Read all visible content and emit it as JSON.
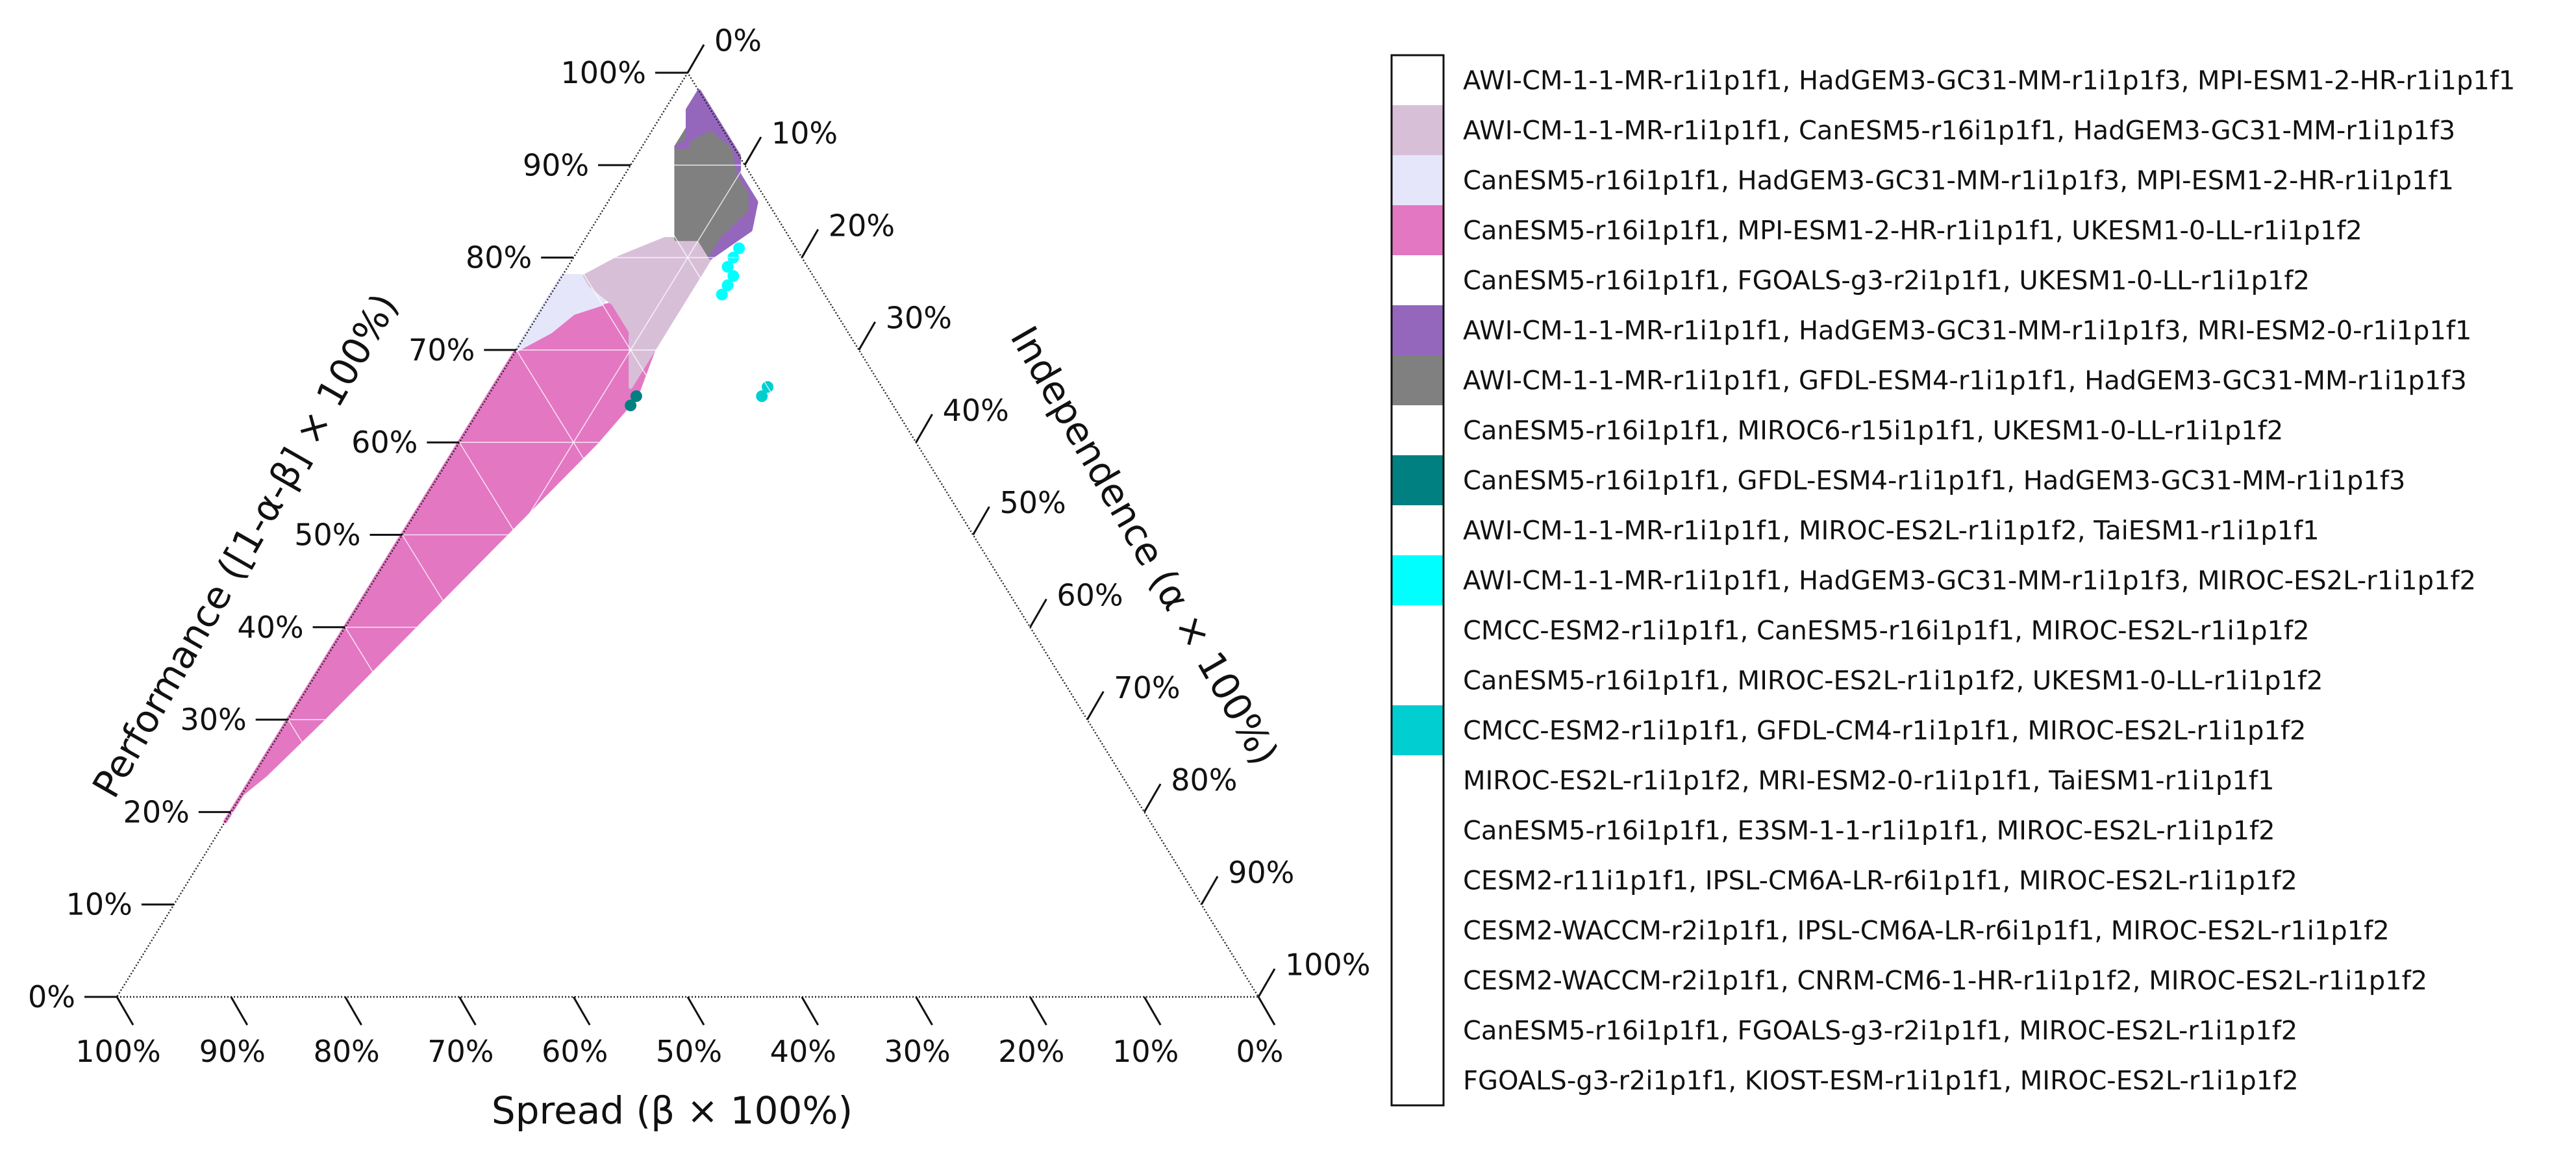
{
  "chart_data": {
    "type": "ternary-hexbin",
    "axes": {
      "bottom": {
        "label": "Spread  (β × 100%)",
        "ticks": [
          "100%",
          "90%",
          "80%",
          "70%",
          "60%",
          "50%",
          "40%",
          "30%",
          "20%",
          "10%",
          "0%"
        ]
      },
      "left": {
        "label": "Performance ([1-α-β] × 100%)",
        "ticks": [
          "0%",
          "10%",
          "20%",
          "30%",
          "40%",
          "50%",
          "60%",
          "70%",
          "80%",
          "90%",
          "100%"
        ]
      },
      "right": {
        "label": "Independence (α × 100%)",
        "ticks": [
          "0%",
          "10%",
          "20%",
          "30%",
          "40%",
          "50%",
          "60%",
          "70%",
          "80%",
          "90%",
          "100%"
        ]
      },
      "range": [
        0,
        100
      ],
      "grid": true
    },
    "legend": {
      "placement": "right",
      "entries": [
        {
          "label": "AWI-CM-1-1-MR-r1i1p1f1, HadGEM3-GC31-MM-r1i1p1f3, MPI-ESM1-2-HR-r1i1p1f1",
          "color": "#ffffff"
        },
        {
          "label": "AWI-CM-1-1-MR-r1i1p1f1, CanESM5-r16i1p1f1, HadGEM3-GC31-MM-r1i1p1f3",
          "color": "#d8bfd8"
        },
        {
          "label": "CanESM5-r16i1p1f1, HadGEM3-GC31-MM-r1i1p1f3, MPI-ESM1-2-HR-r1i1p1f1",
          "color": "#e6e6fa"
        },
        {
          "label": "CanESM5-r16i1p1f1, MPI-ESM1-2-HR-r1i1p1f1, UKESM1-0-LL-r1i1p1f2",
          "color": "#e377c2"
        },
        {
          "label": "CanESM5-r16i1p1f1, FGOALS-g3-r2i1p1f1, UKESM1-0-LL-r1i1p1f2",
          "color": "#ffffff"
        },
        {
          "label": "AWI-CM-1-1-MR-r1i1p1f1, HadGEM3-GC31-MM-r1i1p1f3, MRI-ESM2-0-r1i1p1f1",
          "color": "#9467bd"
        },
        {
          "label": "AWI-CM-1-1-MR-r1i1p1f1, GFDL-ESM4-r1i1p1f1, HadGEM3-GC31-MM-r1i1p1f3",
          "color": "#808080"
        },
        {
          "label": "CanESM5-r16i1p1f1, MIROC6-r15i1p1f1, UKESM1-0-LL-r1i1p1f2",
          "color": "#ffffff"
        },
        {
          "label": "CanESM5-r16i1p1f1, GFDL-ESM4-r1i1p1f1, HadGEM3-GC31-MM-r1i1p1f3",
          "color": "#008080"
        },
        {
          "label": "AWI-CM-1-1-MR-r1i1p1f1, MIROC-ES2L-r1i1p1f2, TaiESM1-r1i1p1f1",
          "color": "#ffffff"
        },
        {
          "label": "AWI-CM-1-1-MR-r1i1p1f1, HadGEM3-GC31-MM-r1i1p1f3, MIROC-ES2L-r1i1p1f2",
          "color": "#00ffff"
        },
        {
          "label": "CMCC-ESM2-r1i1p1f1, CanESM5-r16i1p1f1, MIROC-ES2L-r1i1p1f2",
          "color": "#ffffff"
        },
        {
          "label": "CanESM5-r16i1p1f1, MIROC-ES2L-r1i1p1f2, UKESM1-0-LL-r1i1p1f2",
          "color": "#ffffff"
        },
        {
          "label": "CMCC-ESM2-r1i1p1f1, GFDL-CM4-r1i1p1f1, MIROC-ES2L-r1i1p1f2",
          "color": "#00ced1"
        },
        {
          "label": "MIROC-ES2L-r1i1p1f2, MRI-ESM2-0-r1i1p1f1, TaiESM1-r1i1p1f1",
          "color": "#ffffff"
        },
        {
          "label": "CanESM5-r16i1p1f1, E3SM-1-1-r1i1p1f1, MIROC-ES2L-r1i1p1f2",
          "color": "#ffffff"
        },
        {
          "label": "CESM2-r11i1p1f1, IPSL-CM6A-LR-r6i1p1f1, MIROC-ES2L-r1i1p1f2",
          "color": "#ffffff"
        },
        {
          "label": "CESM2-WACCM-r2i1p1f1, IPSL-CM6A-LR-r6i1p1f1, MIROC-ES2L-r1i1p1f2",
          "color": "#ffffff"
        },
        {
          "label": "CESM2-WACCM-r2i1p1f1, CNRM-CM6-1-HR-r1i1p1f2, MIROC-ES2L-r1i1p1f2",
          "color": "#ffffff"
        },
        {
          "label": "CanESM5-r16i1p1f1, FGOALS-g3-r2i1p1f1, MIROC-ES2L-r1i1p1f2",
          "color": "#ffffff"
        },
        {
          "label": "FGOALS-g3-r2i1p1f1, KIOST-ESM-r1i1p1f1, MIROC-ES2L-r1i1p1f2",
          "color": "#ffffff"
        }
      ]
    },
    "regions": [
      {
        "color": "#e377c2",
        "note_series": 3,
        "points_pab": [
          [
            19,
            0,
            81
          ],
          [
            20,
            0,
            80
          ],
          [
            22,
            0,
            78
          ],
          [
            24,
            1,
            75
          ],
          [
            30,
            3,
            67
          ],
          [
            40,
            6,
            54
          ],
          [
            50,
            9,
            41
          ],
          [
            60,
            12,
            28
          ],
          [
            65,
            13,
            22
          ],
          [
            70,
            12,
            18
          ],
          [
            73,
            10,
            17
          ],
          [
            75,
            6,
            19
          ],
          [
            74,
            3,
            23
          ],
          [
            72,
            2,
            26
          ],
          [
            70,
            0,
            30
          ],
          [
            65,
            0,
            35
          ],
          [
            60,
            0,
            40
          ],
          [
            50,
            0,
            50
          ],
          [
            40,
            0,
            60
          ],
          [
            30,
            0,
            70
          ],
          [
            20,
            0,
            80
          ],
          [
            19,
            0,
            81
          ]
        ]
      },
      {
        "color": "#e6e6fa",
        "note_series": 2,
        "points_pab": [
          [
            70,
            0,
            30
          ],
          [
            72,
            2,
            26
          ],
          [
            74,
            3,
            23
          ],
          [
            75,
            5,
            20
          ],
          [
            77,
            5,
            18
          ],
          [
            78,
            3,
            19
          ],
          [
            78,
            0,
            22
          ],
          [
            70,
            0,
            30
          ]
        ]
      },
      {
        "color": "#d8bfd8",
        "note_series": 1,
        "points_pab": [
          [
            66,
            12,
            22
          ],
          [
            70,
            12,
            18
          ],
          [
            73,
            12,
            15
          ],
          [
            77,
            12,
            11
          ],
          [
            80,
            12,
            8
          ],
          [
            82,
            10,
            8
          ],
          [
            82,
            7,
            11
          ],
          [
            80,
            4,
            16
          ],
          [
            78,
            2,
            20
          ],
          [
            77,
            3,
            20
          ],
          [
            75,
            6,
            19
          ],
          [
            72,
            9,
            19
          ],
          [
            68,
            11,
            21
          ],
          [
            66,
            12,
            22
          ]
        ]
      },
      {
        "color": "#808080",
        "note_series": 6,
        "points_pab": [
          [
            80,
            12,
            8
          ],
          [
            83,
            14,
            3
          ],
          [
            86,
            13,
            1
          ],
          [
            89,
            10,
            1
          ],
          [
            92,
            8,
            0
          ],
          [
            94,
            5,
            1
          ],
          [
            95,
            3,
            2
          ],
          [
            92,
            3,
            5
          ],
          [
            88,
            5,
            7
          ],
          [
            84,
            7,
            9
          ],
          [
            82,
            8,
            10
          ],
          [
            82,
            10,
            8
          ],
          [
            80,
            12,
            8
          ]
        ]
      },
      {
        "color": "#9467bd",
        "note_series": 5,
        "points_pab": [
          [
            80,
            12,
            8
          ],
          [
            82,
            12,
            6
          ],
          [
            85,
            13,
            2
          ],
          [
            87,
            12,
            1
          ],
          [
            89,
            10,
            1
          ],
          [
            91,
            9,
            0
          ],
          [
            94,
            6,
            0
          ],
          [
            97,
            3,
            0
          ],
          [
            98,
            2,
            0
          ],
          [
            96,
            2,
            2
          ],
          [
            94,
            3,
            3
          ],
          [
            92,
            4,
            4
          ],
          [
            92,
            3,
            5
          ],
          [
            94,
            5,
            1
          ],
          [
            92,
            8,
            0
          ],
          [
            89,
            10,
            1
          ],
          [
            86,
            13,
            1
          ],
          [
            83,
            14,
            3
          ],
          [
            80,
            12,
            8
          ]
        ]
      },
      {
        "color": "#008080",
        "note_series": 8,
        "points_pab": [
          [
            64,
            13,
            23
          ],
          [
            65,
            13,
            22
          ]
        ]
      },
      {
        "color": "#00ffff",
        "note_series": 10,
        "points_pab": [
          [
            76,
            15,
            9
          ],
          [
            77,
            15,
            8
          ],
          [
            78,
            15,
            7
          ],
          [
            79,
            14,
            7
          ],
          [
            80,
            14,
            6
          ],
          [
            81,
            14,
            5
          ]
        ]
      },
      {
        "color": "#00ced1",
        "note_series": 13,
        "points_pab": [
          [
            65,
            24,
            11
          ],
          [
            66,
            24,
            10
          ]
        ]
      }
    ]
  }
}
